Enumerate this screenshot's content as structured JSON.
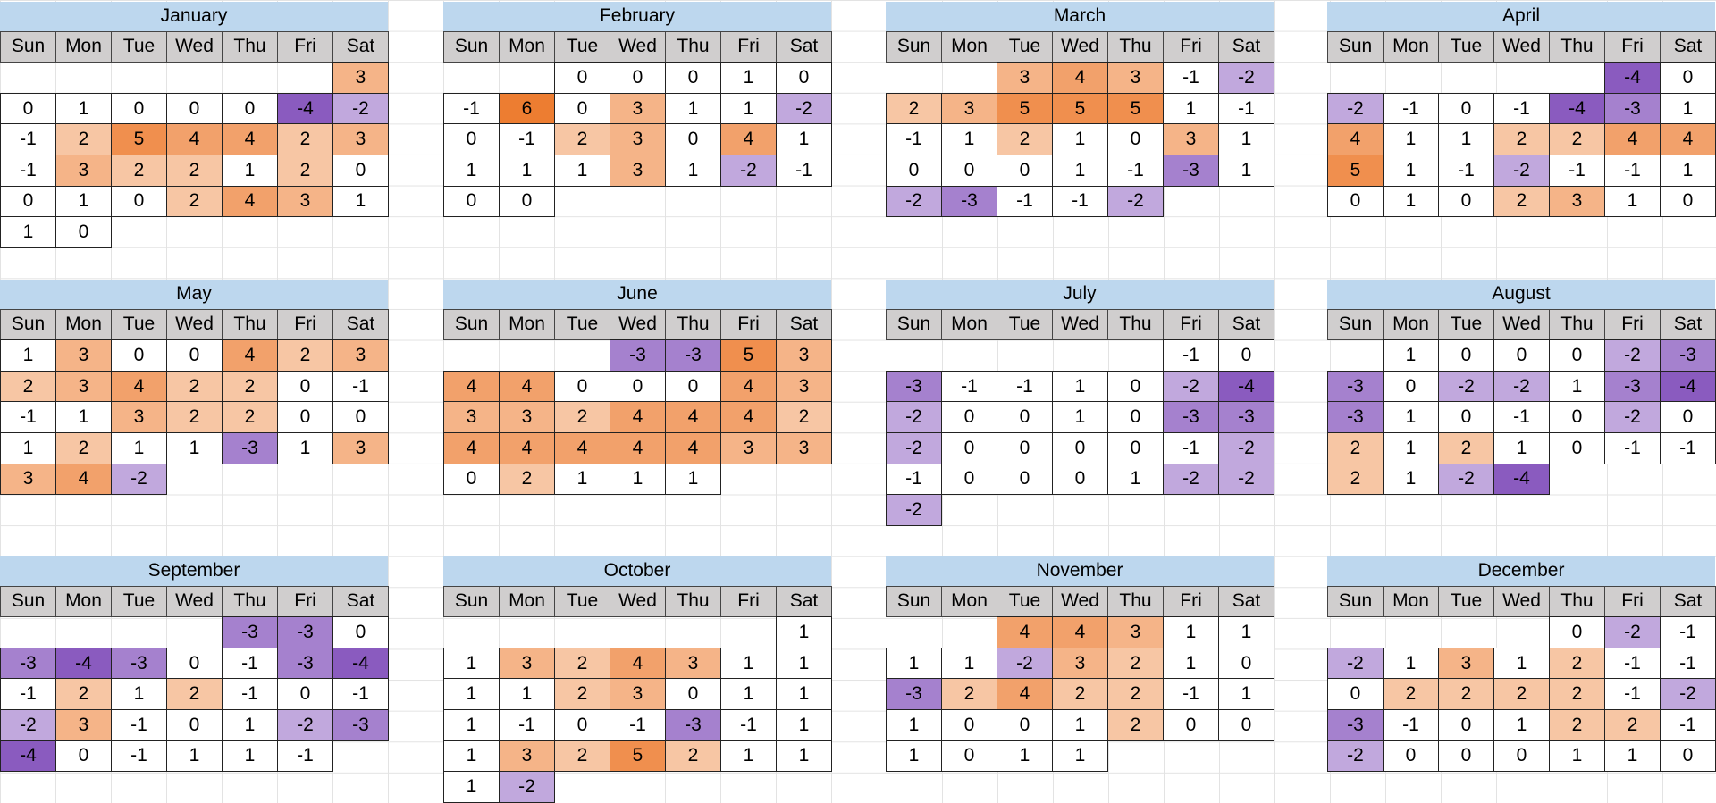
{
  "weekdays": [
    "Sun",
    "Mon",
    "Tue",
    "Wed",
    "Thu",
    "Fri",
    "Sat"
  ],
  "colors": {
    "negative": "#8a5bbf",
    "positive": "#ed7d31",
    "neutral": "#ffffff",
    "title": "#bdd7ee",
    "header": "#d0cece"
  },
  "months": [
    {
      "name": "January",
      "weeks": [
        [
          null,
          null,
          null,
          null,
          null,
          null,
          3
        ],
        [
          0,
          1,
          0,
          0,
          0,
          -4,
          -2
        ],
        [
          -1,
          2,
          5,
          4,
          4,
          2,
          3
        ],
        [
          -1,
          3,
          2,
          2,
          1,
          2,
          0
        ],
        [
          0,
          1,
          0,
          2,
          4,
          3,
          1
        ],
        [
          1,
          0,
          null,
          null,
          null,
          null,
          null
        ]
      ]
    },
    {
      "name": "February",
      "weeks": [
        [
          null,
          null,
          0,
          0,
          0,
          1,
          0
        ],
        [
          -1,
          6,
          0,
          3,
          1,
          1,
          -2
        ],
        [
          0,
          -1,
          2,
          3,
          0,
          4,
          1
        ],
        [
          1,
          1,
          1,
          3,
          1,
          -2,
          -1
        ],
        [
          0,
          0,
          null,
          null,
          null,
          null,
          null
        ]
      ]
    },
    {
      "name": "March",
      "weeks": [
        [
          null,
          null,
          3,
          4,
          3,
          -1,
          -2
        ],
        [
          2,
          3,
          5,
          5,
          5,
          1,
          -1
        ],
        [
          -1,
          1,
          2,
          1,
          0,
          3,
          1
        ],
        [
          0,
          0,
          0,
          1,
          -1,
          -3,
          1
        ],
        [
          -2,
          -3,
          -1,
          -1,
          -2,
          null,
          null
        ]
      ]
    },
    {
      "name": "April",
      "weeks": [
        [
          null,
          null,
          null,
          null,
          null,
          -4,
          0
        ],
        [
          -2,
          -1,
          0,
          -1,
          -4,
          -3,
          1
        ],
        [
          4,
          1,
          1,
          2,
          2,
          4,
          4
        ],
        [
          5,
          1,
          -1,
          -2,
          -1,
          -1,
          1
        ],
        [
          0,
          1,
          0,
          2,
          3,
          1,
          0
        ]
      ]
    },
    {
      "name": "May",
      "weeks": [
        [
          1,
          3,
          0,
          0,
          4,
          2,
          3
        ],
        [
          2,
          3,
          4,
          2,
          2,
          0,
          -1
        ],
        [
          -1,
          1,
          3,
          2,
          2,
          0,
          0
        ],
        [
          1,
          2,
          1,
          1,
          -3,
          1,
          3
        ],
        [
          3,
          4,
          -2,
          null,
          null,
          null,
          null
        ]
      ]
    },
    {
      "name": "June",
      "weeks": [
        [
          null,
          null,
          null,
          -3,
          -3,
          5,
          3
        ],
        [
          4,
          4,
          0,
          0,
          0,
          4,
          3
        ],
        [
          3,
          3,
          2,
          4,
          4,
          4,
          2
        ],
        [
          4,
          4,
          4,
          4,
          4,
          3,
          3
        ],
        [
          0,
          2,
          1,
          1,
          1,
          null,
          null
        ]
      ]
    },
    {
      "name": "July",
      "weeks": [
        [
          null,
          null,
          null,
          null,
          null,
          -1,
          0
        ],
        [
          -3,
          -1,
          -1,
          1,
          0,
          -2,
          -4
        ],
        [
          -2,
          0,
          0,
          1,
          0,
          -3,
          -3
        ],
        [
          -2,
          0,
          0,
          0,
          0,
          -1,
          -2
        ],
        [
          -1,
          0,
          0,
          0,
          1,
          -2,
          -2
        ],
        [
          -2,
          null,
          null,
          null,
          null,
          null,
          null
        ]
      ]
    },
    {
      "name": "August",
      "weeks": [
        [
          null,
          1,
          0,
          0,
          0,
          -2,
          -3
        ],
        [
          -3,
          0,
          -2,
          -2,
          1,
          -3,
          -4
        ],
        [
          -3,
          1,
          0,
          -1,
          0,
          -2,
          0
        ],
        [
          2,
          1,
          2,
          1,
          0,
          -1,
          -1
        ],
        [
          2,
          1,
          -2,
          -4,
          null,
          null,
          null
        ]
      ]
    },
    {
      "name": "September",
      "weeks": [
        [
          null,
          null,
          null,
          null,
          -3,
          -3,
          0
        ],
        [
          -3,
          -4,
          -3,
          0,
          -1,
          -3,
          -4
        ],
        [
          -1,
          2,
          1,
          2,
          -1,
          0,
          -1
        ],
        [
          -2,
          3,
          -1,
          0,
          1,
          -2,
          -3
        ],
        [
          -4,
          0,
          -1,
          1,
          1,
          -1,
          null
        ]
      ]
    },
    {
      "name": "October",
      "weeks": [
        [
          null,
          null,
          null,
          null,
          null,
          null,
          1
        ],
        [
          1,
          3,
          2,
          4,
          3,
          1,
          1
        ],
        [
          1,
          1,
          2,
          3,
          0,
          1,
          1
        ],
        [
          1,
          -1,
          0,
          -1,
          -3,
          -1,
          1
        ],
        [
          1,
          3,
          2,
          5,
          2,
          1,
          1
        ],
        [
          1,
          -2,
          null,
          null,
          null,
          null,
          null
        ]
      ]
    },
    {
      "name": "November",
      "weeks": [
        [
          null,
          null,
          4,
          4,
          3,
          1,
          1
        ],
        [
          1,
          1,
          -2,
          3,
          2,
          1,
          0
        ],
        [
          -3,
          2,
          4,
          2,
          2,
          -1,
          1
        ],
        [
          1,
          0,
          0,
          1,
          2,
          0,
          0
        ],
        [
          1,
          0,
          1,
          1,
          null,
          null,
          null
        ]
      ]
    },
    {
      "name": "December",
      "weeks": [
        [
          null,
          null,
          null,
          null,
          0,
          -2,
          -1
        ],
        [
          -2,
          1,
          3,
          1,
          2,
          -1,
          -1
        ],
        [
          0,
          2,
          2,
          2,
          2,
          -1,
          -2
        ],
        [
          -3,
          -1,
          0,
          1,
          2,
          2,
          -1
        ],
        [
          -2,
          0,
          0,
          0,
          1,
          1,
          0
        ]
      ]
    }
  ]
}
